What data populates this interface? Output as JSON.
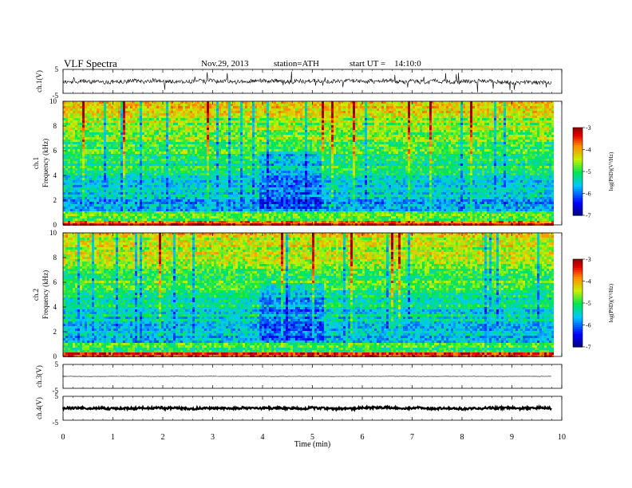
{
  "header": {
    "title": "VLF Spectra",
    "date": "Nov.29, 2013",
    "station": "station=ATH",
    "start": "start UT =    14:10:0"
  },
  "chart_data": [
    {
      "type": "line",
      "panel": "ch1-waveform",
      "ylabel": "ch.1(V)",
      "ylim": [
        -5,
        5
      ],
      "yticks": [
        "5",
        "-5"
      ],
      "xlim": [
        0,
        10
      ]
    },
    {
      "type": "heatmap",
      "panel": "ch1-spectrogram",
      "ylabel": "ch.1 Frequency (kHz)",
      "ylabel_channel": "ch.1",
      "ylabel_quantity": "Frequency  (kHz)",
      "ylim": [
        0,
        10
      ],
      "yticks": [
        "0",
        "2",
        "4",
        "6",
        "8",
        "10"
      ],
      "xlim": [
        0,
        10
      ],
      "data_end_min": 9.8,
      "colorbar": {
        "label": "log(PSD)(V²/Hz)",
        "range": [
          -7,
          -3
        ],
        "ticks": [
          "-3",
          "-4",
          "-5",
          "-6",
          "-7"
        ]
      }
    },
    {
      "type": "heatmap",
      "panel": "ch2-spectrogram",
      "ylabel": "ch.2 Frequency (kHz)",
      "ylabel_channel": "ch.2",
      "ylabel_quantity": "Frequency  (kHz)",
      "ylim": [
        0,
        10
      ],
      "yticks": [
        "0",
        "2",
        "4",
        "6",
        "8",
        "10"
      ],
      "xlim": [
        0,
        10
      ],
      "data_end_min": 9.8,
      "colorbar": {
        "label": "log(PSD)(V²/Hz)",
        "range": [
          -7,
          -3
        ],
        "ticks": [
          "-3",
          "-4",
          "-5",
          "-6",
          "-7"
        ]
      }
    },
    {
      "type": "line",
      "panel": "ch3-waveform",
      "ylabel": "ch.3(V)",
      "ylim": [
        -5,
        5
      ],
      "yticks": [
        "5",
        "-5"
      ],
      "xlim": [
        0,
        10
      ]
    },
    {
      "type": "line",
      "panel": "ch4-waveform",
      "ylabel": "ch.4(V)",
      "ylim": [
        -5,
        5
      ],
      "yticks": [
        "5",
        "-5"
      ],
      "xlim": [
        0,
        10
      ],
      "xlabel": "Time  (min)",
      "xticks": [
        "0",
        "1",
        "2",
        "3",
        "4",
        "5",
        "6",
        "7",
        "8",
        "9",
        "10"
      ]
    }
  ]
}
